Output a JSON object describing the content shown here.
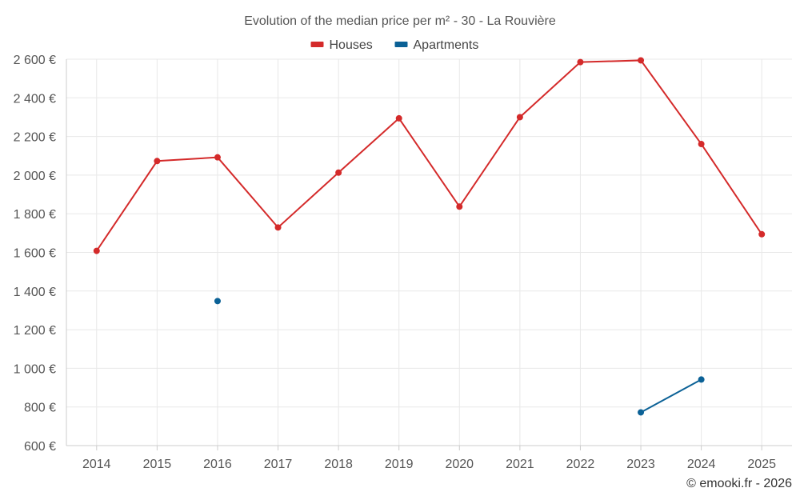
{
  "chart_data": {
    "type": "line",
    "title": "Evolution of the median price per m² - 30 - La Rouvière",
    "categories": [
      "2014",
      "2015",
      "2016",
      "2017",
      "2018",
      "2019",
      "2020",
      "2021",
      "2022",
      "2023",
      "2024",
      "2025"
    ],
    "series": [
      {
        "name": "Houses",
        "color": "#d42a2a",
        "values": [
          1608,
          2073,
          2092,
          1729,
          2013,
          2294,
          1837,
          2300,
          2585,
          2594,
          2161,
          1694
        ]
      },
      {
        "name": "Apartments",
        "color": "#0b6196",
        "values": [
          null,
          null,
          1348,
          null,
          null,
          null,
          null,
          null,
          null,
          772,
          942,
          null
        ]
      }
    ],
    "ylim": [
      600,
      2600
    ],
    "yticks": [
      600,
      800,
      1000,
      1200,
      1400,
      1600,
      1800,
      2000,
      2200,
      2400,
      2600
    ],
    "ytick_labels": [
      "600 €",
      "800 €",
      "1 000 €",
      "1 200 €",
      "1 400 €",
      "1 600 €",
      "1 800 €",
      "2 000 €",
      "2 200 €",
      "2 400 €",
      "2 600 €"
    ],
    "xlabel": "",
    "ylabel": "",
    "legend_position": "top-center",
    "grid": true
  },
  "credit": "© emooki.fr - 2026"
}
